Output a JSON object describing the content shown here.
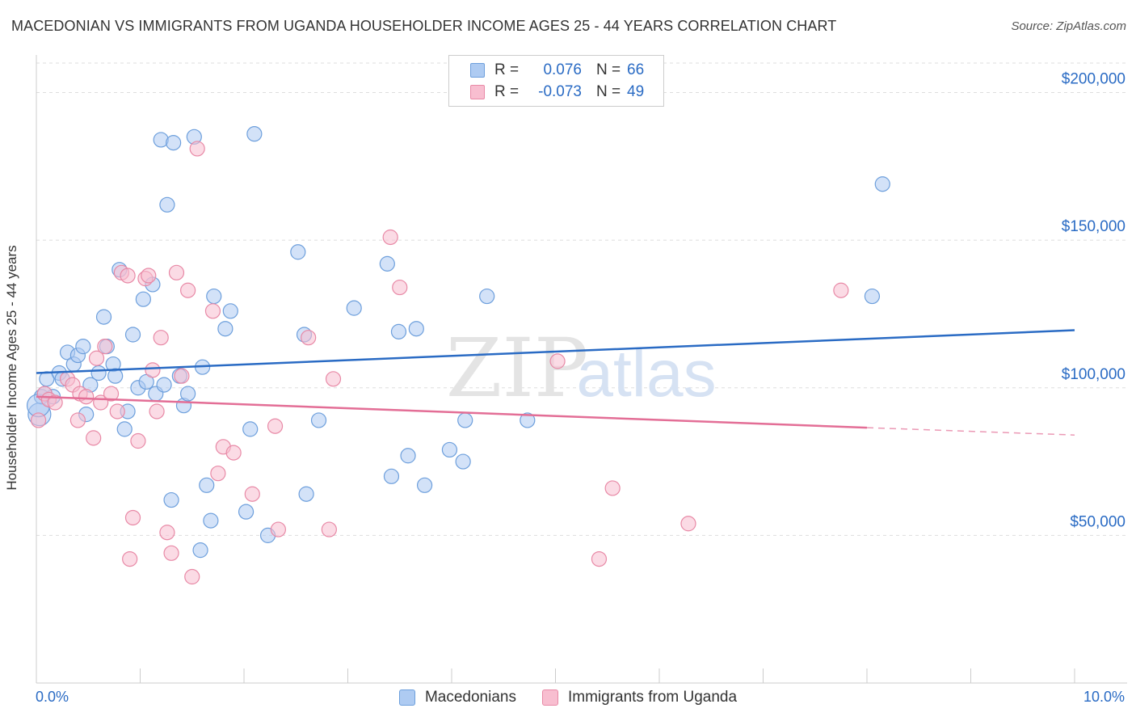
{
  "title": "MACEDONIAN VS IMMIGRANTS FROM UGANDA HOUSEHOLDER INCOME AGES 25 - 44 YEARS CORRELATION CHART",
  "source": "Source: ZipAtlas.com",
  "watermark": {
    "zip": "ZIP",
    "atlas": "atlas"
  },
  "legend_top": [
    {
      "r_label": "R =",
      "r_value": "0.076",
      "n_label": "N =",
      "n_value": "66",
      "color": "#aecbf2",
      "stroke": "#6d9fdc"
    },
    {
      "r_label": "R =",
      "r_value": "-0.073",
      "n_label": "N =",
      "n_value": "49",
      "color": "#f8bed0",
      "stroke": "#e889a6"
    }
  ],
  "chart_data": {
    "type": "scatter",
    "title": "MACEDONIAN VS IMMIGRANTS FROM UGANDA HOUSEHOLDER INCOME AGES 25 - 44 YEARS CORRELATION CHART",
    "xlabel": "",
    "ylabel": "Householder Income Ages 25 - 44 years",
    "xlim": [
      0,
      10
    ],
    "ylim": [
      0,
      210000
    ],
    "x_tick_labels": [
      "0.0%",
      "10.0%"
    ],
    "y_ticks": [
      50000,
      100000,
      150000,
      200000
    ],
    "y_tick_labels": [
      "$50,000",
      "$100,000",
      "$150,000",
      "$200,000"
    ],
    "grid": true,
    "legend_position": "bottom",
    "series": [
      {
        "name": "Macedonians",
        "color": "#aecbf2",
        "stroke": "#6d9fdc",
        "line_color": "#2a6bc4",
        "trend": {
          "x0": 0.0,
          "y0": 105000,
          "x1": 10.0,
          "y1": 119500
        },
        "points": [
          [
            0.03,
            91000
          ],
          [
            0.05,
            97000
          ],
          [
            0.1,
            103000
          ],
          [
            0.16,
            97000
          ],
          [
            0.22,
            105000
          ],
          [
            0.25,
            103000
          ],
          [
            0.3,
            112000
          ],
          [
            0.36,
            108000
          ],
          [
            0.4,
            111000
          ],
          [
            0.45,
            114000
          ],
          [
            0.48,
            91000
          ],
          [
            0.52,
            101000
          ],
          [
            0.6,
            105000
          ],
          [
            0.65,
            124000
          ],
          [
            0.68,
            114000
          ],
          [
            0.74,
            108000
          ],
          [
            0.76,
            104000
          ],
          [
            0.8,
            140000
          ],
          [
            0.85,
            86000
          ],
          [
            0.88,
            92000
          ],
          [
            0.93,
            118000
          ],
          [
            0.98,
            100000
          ],
          [
            1.03,
            130000
          ],
          [
            1.06,
            102000
          ],
          [
            1.12,
            135000
          ],
          [
            1.15,
            98000
          ],
          [
            1.2,
            184000
          ],
          [
            1.23,
            101000
          ],
          [
            1.26,
            162000
          ],
          [
            1.3,
            62000
          ],
          [
            1.32,
            183000
          ],
          [
            1.38,
            104000
          ],
          [
            1.42,
            94000
          ],
          [
            1.46,
            98000
          ],
          [
            1.52,
            185000
          ],
          [
            1.58,
            45000
          ],
          [
            1.6,
            107000
          ],
          [
            1.64,
            67000
          ],
          [
            1.68,
            55000
          ],
          [
            1.71,
            131000
          ],
          [
            1.82,
            120000
          ],
          [
            1.87,
            126000
          ],
          [
            2.02,
            58000
          ],
          [
            2.06,
            86000
          ],
          [
            2.1,
            186000
          ],
          [
            2.23,
            50000
          ],
          [
            2.52,
            146000
          ],
          [
            2.58,
            118000
          ],
          [
            2.6,
            64000
          ],
          [
            2.72,
            89000
          ],
          [
            3.06,
            127000
          ],
          [
            3.38,
            142000
          ],
          [
            3.42,
            70000
          ],
          [
            3.49,
            119000
          ],
          [
            3.58,
            77000
          ],
          [
            3.66,
            120000
          ],
          [
            3.74,
            67000
          ],
          [
            3.98,
            79000
          ],
          [
            4.11,
            75000
          ],
          [
            4.13,
            89000
          ],
          [
            4.34,
            131000
          ],
          [
            4.73,
            89000
          ],
          [
            8.05,
            131000
          ],
          [
            8.15,
            169000
          ],
          [
            0.02,
            94000
          ],
          [
            0.08,
            98000
          ]
        ]
      },
      {
        "name": "Immigrants from Uganda",
        "color": "#f8bed0",
        "stroke": "#e889a6",
        "line_color": "#e36e96",
        "trend": {
          "x0": 0.0,
          "y0": 97000,
          "x1": 8.0,
          "y1": 86500
        },
        "trend_dashed": {
          "x0": 8.0,
          "y0": 86500,
          "x1": 10.0,
          "y1": 84000
        },
        "points": [
          [
            0.02,
            89000
          ],
          [
            0.08,
            98000
          ],
          [
            0.12,
            96000
          ],
          [
            0.18,
            95000
          ],
          [
            0.3,
            103000
          ],
          [
            0.35,
            101000
          ],
          [
            0.42,
            98000
          ],
          [
            0.48,
            97000
          ],
          [
            0.55,
            83000
          ],
          [
            0.58,
            110000
          ],
          [
            0.62,
            95000
          ],
          [
            0.66,
            114000
          ],
          [
            0.72,
            98000
          ],
          [
            0.78,
            92000
          ],
          [
            0.82,
            139000
          ],
          [
            0.88,
            138000
          ],
          [
            0.9,
            42000
          ],
          [
            0.93,
            56000
          ],
          [
            0.98,
            82000
          ],
          [
            1.05,
            137000
          ],
          [
            1.08,
            138000
          ],
          [
            1.12,
            106000
          ],
          [
            1.16,
            92000
          ],
          [
            1.2,
            117000
          ],
          [
            1.26,
            51000
          ],
          [
            1.3,
            44000
          ],
          [
            1.35,
            139000
          ],
          [
            1.4,
            104000
          ],
          [
            1.46,
            133000
          ],
          [
            1.5,
            36000
          ],
          [
            1.55,
            181000
          ],
          [
            1.7,
            126000
          ],
          [
            1.75,
            71000
          ],
          [
            1.8,
            80000
          ],
          [
            1.9,
            78000
          ],
          [
            2.08,
            64000
          ],
          [
            2.3,
            87000
          ],
          [
            2.33,
            52000
          ],
          [
            2.62,
            117000
          ],
          [
            2.82,
            52000
          ],
          [
            2.86,
            103000
          ],
          [
            3.41,
            151000
          ],
          [
            3.5,
            134000
          ],
          [
            5.02,
            109000
          ],
          [
            5.42,
            42000
          ],
          [
            5.55,
            66000
          ],
          [
            6.28,
            54000
          ],
          [
            7.75,
            133000
          ],
          [
            0.4,
            89000
          ]
        ]
      }
    ]
  }
}
